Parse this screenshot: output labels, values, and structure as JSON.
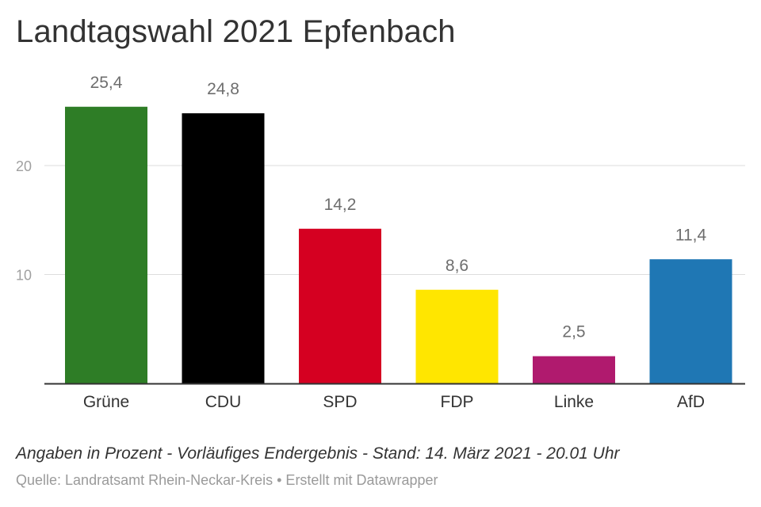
{
  "title": "Landtagswahl 2021 Epfenbach",
  "note": "Angaben in Prozent - Vorläufiges Endergebnis - Stand: 14. März 2021 - 20.01 Uhr",
  "source": "Quelle: Landratsamt Rhein-Neckar-Kreis • Erstellt mit Datawrapper",
  "chart_data": {
    "type": "bar",
    "title": "Landtagswahl 2021 Epfenbach",
    "xlabel": "",
    "ylabel": "",
    "categories": [
      "Grüne",
      "CDU",
      "SPD",
      "FDP",
      "Linke",
      "AfD"
    ],
    "values": [
      25.4,
      24.8,
      14.2,
      8.6,
      2.5,
      11.4
    ],
    "value_labels": [
      "25,4",
      "24,8",
      "14,2",
      "8,6",
      "2,5",
      "11,4"
    ],
    "colors": [
      "#2e7d26",
      "#000000",
      "#d50021",
      "#ffe600",
      "#b01a6e",
      "#1f77b4"
    ],
    "yticks": [
      10,
      20
    ],
    "ylim": [
      0,
      25.4
    ],
    "grid": true,
    "legend": "none"
  }
}
